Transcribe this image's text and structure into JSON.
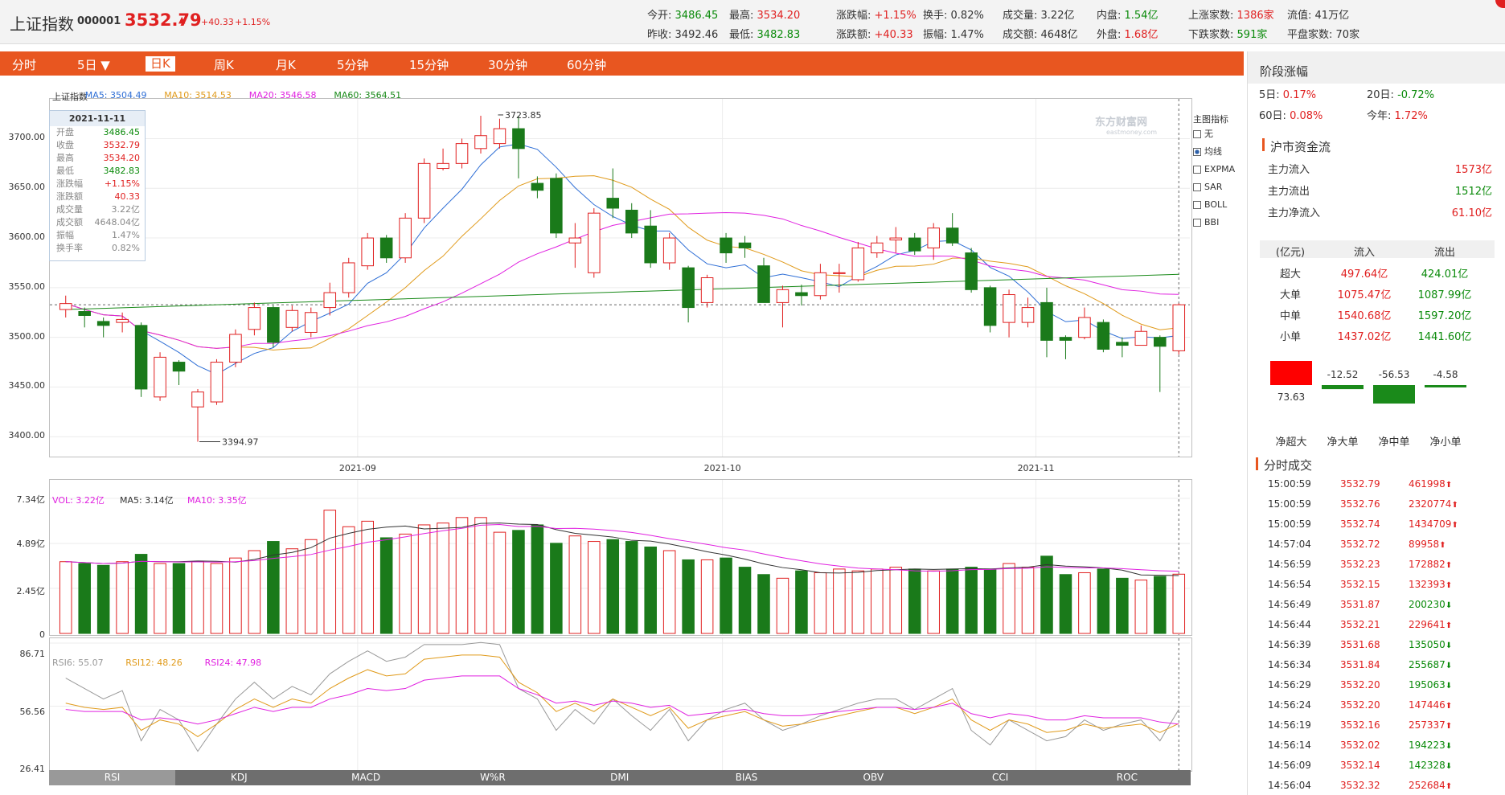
{
  "header": {
    "name": "上证指数",
    "code": "000001",
    "price": "3532.79",
    "arrow": "▲",
    "change": "+40.33",
    "change_pct": "+1.15%",
    "stats": [
      {
        "label": "今开:",
        "value": "3486.45",
        "color": "grn"
      },
      {
        "label": "最高:",
        "value": "3534.20",
        "color": "red"
      },
      {
        "label": "涨跌幅:",
        "value": "+1.15%",
        "color": "red"
      },
      {
        "label": "换手:",
        "value": "0.82%",
        "color": "blk"
      },
      {
        "label": "成交量:",
        "value": "3.22亿",
        "color": "blk"
      },
      {
        "label": "内盘:",
        "value": "1.54亿",
        "color": "grn"
      },
      {
        "label": "上涨家数:",
        "value": "1386家",
        "color": "red"
      },
      {
        "label": "流值:",
        "value": "41万亿",
        "color": "blk"
      },
      {
        "label": "昨收:",
        "value": "3492.46",
        "color": "blk"
      },
      {
        "label": "最低:",
        "value": "3482.83",
        "color": "grn"
      },
      {
        "label": "涨跌额:",
        "value": "+40.33",
        "color": "red"
      },
      {
        "label": "振幅:",
        "value": "1.47%",
        "color": "blk"
      },
      {
        "label": "成交额:",
        "value": "4648亿",
        "color": "blk"
      },
      {
        "label": "外盘:",
        "value": "1.68亿",
        "color": "red"
      },
      {
        "label": "下跌家数:",
        "value": "591家",
        "color": "grn"
      },
      {
        "label": "平盘家数:",
        "value": "70家",
        "color": "blk"
      }
    ]
  },
  "tabs": [
    "分时",
    "5日 ▼",
    "日K",
    "周K",
    "月K",
    "5分钟",
    "15分钟",
    "30分钟",
    "60分钟"
  ],
  "active_tab": "日K",
  "kline": {
    "legend": [
      {
        "label": "上证指数",
        "color": "#333333"
      },
      {
        "label": "MA5: 3504.49",
        "color": "#2f6fd6"
      },
      {
        "label": "MA10: 3514.53",
        "color": "#e09a1a"
      },
      {
        "label": "MA20: 3546.58",
        "color": "#e020e0"
      },
      {
        "label": "MA60: 3564.51",
        "color": "#1a8a1a"
      }
    ],
    "y_ticks": [
      "3700.00",
      "3650.00",
      "3600.00",
      "3550.00",
      "3500.00",
      "3450.00",
      "3400.00"
    ],
    "x_labels": [
      "2021-09",
      "2021-10",
      "2021-11"
    ],
    "annotations": {
      "high": "3723.85",
      "low": "3394.97"
    },
    "watermark": "东方财富网",
    "watermark_sub": "eastmoney.com",
    "tooltip": {
      "date": "2021-11-11",
      "rows": [
        {
          "k": "开盘",
          "v": "3486.45",
          "c": "grn"
        },
        {
          "k": "收盘",
          "v": "3532.79",
          "c": "red"
        },
        {
          "k": "最高",
          "v": "3534.20",
          "c": "red"
        },
        {
          "k": "最低",
          "v": "3482.83",
          "c": "grn"
        },
        {
          "k": "涨跌幅",
          "v": "+1.15%",
          "c": "red"
        },
        {
          "k": "涨跌额",
          "v": "40.33",
          "c": "red"
        },
        {
          "k": "成交量",
          "v": "3.22亿",
          "c": "blk"
        },
        {
          "k": "成交额",
          "v": "4648.04亿",
          "c": "blk"
        },
        {
          "k": "振幅",
          "v": "1.47%",
          "c": "blk"
        },
        {
          "k": "换手率",
          "v": "0.82%",
          "c": "blk"
        }
      ]
    },
    "indicator_title": "主图指标",
    "indicators": [
      {
        "label": "无",
        "checked": false
      },
      {
        "label": "均线",
        "checked": true
      },
      {
        "label": "EXPMA",
        "checked": false
      },
      {
        "label": "SAR",
        "checked": false
      },
      {
        "label": "BOLL",
        "checked": false
      },
      {
        "label": "BBI",
        "checked": false
      }
    ]
  },
  "volume": {
    "legend": [
      {
        "label": "VOL: 3.22亿",
        "color": "#e020e0"
      },
      {
        "label": "MA5: 3.14亿",
        "color": "#333333"
      },
      {
        "label": "MA10: 3.35亿",
        "color": "#e020e0"
      }
    ],
    "y_ticks": [
      "7.34亿",
      "4.89亿",
      "2.45亿",
      "0"
    ]
  },
  "rsi": {
    "legend": [
      {
        "label": "RSI6: 55.07",
        "color": "#999999"
      },
      {
        "label": "RSI12: 48.26",
        "color": "#e09a1a"
      },
      {
        "label": "RSI24: 47.98",
        "color": "#e020e0"
      }
    ],
    "y_ticks": [
      "86.71",
      "56.56",
      "26.41"
    ],
    "tabs": [
      "RSI",
      "KDJ",
      "MACD",
      "W%R",
      "DMI",
      "BIAS",
      "OBV",
      "CCI",
      "ROC"
    ]
  },
  "chart_data": [
    {
      "type": "candlestick",
      "title": "上证指数",
      "x_labels": [
        "2021-09",
        "2021-10",
        "2021-11"
      ],
      "ylim": [
        3380,
        3740
      ],
      "candles": [
        [
          3528,
          3534,
          3542,
          3520
        ],
        [
          3526,
          3522,
          3530,
          3510
        ],
        [
          3516,
          3512,
          3520,
          3500
        ],
        [
          3515,
          3518,
          3525,
          3505
        ],
        [
          3512,
          3448,
          3515,
          3440
        ],
        [
          3440,
          3480,
          3485,
          3436
        ],
        [
          3475,
          3466,
          3477,
          3452
        ],
        [
          3430,
          3445,
          3448,
          3395
        ],
        [
          3435,
          3475,
          3478,
          3432
        ],
        [
          3475,
          3503,
          3508,
          3470
        ],
        [
          3508,
          3530,
          3535,
          3502
        ],
        [
          3530,
          3495,
          3532,
          3490
        ],
        [
          3510,
          3527,
          3532,
          3506
        ],
        [
          3505,
          3525,
          3530,
          3500
        ],
        [
          3530,
          3545,
          3555,
          3522
        ],
        [
          3545,
          3575,
          3580,
          3540
        ],
        [
          3572,
          3600,
          3605,
          3568
        ],
        [
          3600,
          3580,
          3603,
          3575
        ],
        [
          3580,
          3620,
          3625,
          3575
        ],
        [
          3620,
          3675,
          3680,
          3615
        ],
        [
          3670,
          3675,
          3690,
          3668
        ],
        [
          3675,
          3695,
          3700,
          3670
        ],
        [
          3690,
          3703,
          3723,
          3685
        ],
        [
          3695,
          3710,
          3720,
          3690
        ],
        [
          3710,
          3690,
          3723,
          3660
        ],
        [
          3655,
          3648,
          3662,
          3640
        ],
        [
          3660,
          3605,
          3665,
          3600
        ],
        [
          3595,
          3600,
          3615,
          3570
        ],
        [
          3565,
          3625,
          3630,
          3560
        ],
        [
          3640,
          3630,
          3670,
          3620
        ],
        [
          3628,
          3605,
          3635,
          3600
        ],
        [
          3612,
          3575,
          3628,
          3570
        ],
        [
          3575,
          3600,
          3605,
          3568
        ],
        [
          3570,
          3530,
          3572,
          3515
        ],
        [
          3535,
          3560,
          3563,
          3530
        ],
        [
          3600,
          3585,
          3605,
          3575
        ],
        [
          3595,
          3590,
          3602,
          3580
        ],
        [
          3572,
          3535,
          3580,
          3540
        ],
        [
          3535,
          3548,
          3552,
          3510
        ],
        [
          3545,
          3542,
          3553,
          3532
        ],
        [
          3542,
          3565,
          3574,
          3538
        ],
        [
          3565,
          3565,
          3574,
          3545
        ],
        [
          3558,
          3590,
          3596,
          3556
        ],
        [
          3585,
          3595,
          3602,
          3580
        ],
        [
          3598,
          3600,
          3611,
          3585
        ],
        [
          3600,
          3587,
          3605,
          3583
        ],
        [
          3590,
          3610,
          3615,
          3578
        ],
        [
          3610,
          3595,
          3625,
          3592
        ],
        [
          3585,
          3548,
          3590,
          3545
        ],
        [
          3550,
          3512,
          3552,
          3505
        ],
        [
          3515,
          3543,
          3548,
          3500
        ],
        [
          3515,
          3530,
          3540,
          3510
        ],
        [
          3535,
          3497,
          3550,
          3480
        ],
        [
          3500,
          3497,
          3502,
          3478
        ],
        [
          3500,
          3520,
          3530,
          3498
        ],
        [
          3515,
          3488,
          3518,
          3485
        ],
        [
          3495,
          3492,
          3500,
          3480
        ],
        [
          3492,
          3506,
          3512,
          3498
        ],
        [
          3500,
          3491,
          3502,
          3445
        ],
        [
          3486.45,
          3532.79,
          3534.2,
          3482.83
        ]
      ]
    },
    {
      "type": "bar",
      "title": "VOL",
      "ylim": [
        0,
        7.34
      ],
      "values": [
        3.9,
        3.8,
        3.7,
        3.9,
        4.3,
        3.8,
        3.8,
        3.9,
        3.8,
        4.1,
        4.5,
        5.0,
        4.6,
        5.1,
        6.7,
        5.8,
        6.1,
        5.2,
        5.4,
        5.9,
        6.0,
        6.3,
        6.3,
        5.5,
        5.6,
        5.9,
        4.9,
        5.3,
        5.0,
        5.1,
        5.0,
        4.7,
        4.5,
        4.0,
        4.0,
        4.1,
        3.6,
        3.2,
        3.0,
        3.4,
        3.3,
        3.5,
        3.4,
        3.5,
        3.6,
        3.5,
        3.4,
        3.5,
        3.6,
        3.5,
        3.8,
        3.6,
        4.2,
        3.2,
        3.3,
        3.5,
        3.0,
        2.9,
        3.1,
        3.22
      ],
      "ma5": 3.14,
      "ma10": 3.35
    },
    {
      "type": "line",
      "title": "RSI",
      "ylim": [
        26.41,
        86.71
      ],
      "series": [
        {
          "name": "RSI6",
          "values": [
            70,
            65,
            60,
            64,
            40,
            55,
            50,
            35,
            48,
            60,
            68,
            60,
            66,
            62,
            72,
            78,
            83,
            78,
            80,
            86,
            86,
            86,
            87,
            86,
            65,
            60,
            45,
            55,
            48,
            60,
            52,
            45,
            55,
            40,
            50,
            55,
            58,
            50,
            45,
            48,
            52,
            55,
            58,
            60,
            60,
            55,
            60,
            65,
            45,
            38,
            50,
            45,
            40,
            42,
            50,
            45,
            48,
            50,
            40,
            55
          ]
        },
        {
          "name": "RSI12",
          "values": [
            58,
            56,
            55,
            56,
            45,
            50,
            48,
            42,
            48,
            55,
            60,
            56,
            60,
            58,
            65,
            70,
            74,
            71,
            72,
            79,
            80,
            81,
            81,
            80,
            68,
            63,
            54,
            58,
            54,
            60,
            56,
            52,
            56,
            46,
            50,
            52,
            54,
            50,
            47,
            48,
            50,
            52,
            54,
            56,
            56,
            53,
            56,
            60,
            50,
            45,
            50,
            48,
            44,
            45,
            48,
            46,
            47,
            48,
            44,
            48.26
          ]
        },
        {
          "name": "RSI24",
          "values": [
            55,
            54,
            54,
            54,
            50,
            51,
            50,
            48,
            50,
            53,
            56,
            54,
            56,
            56,
            60,
            62,
            65,
            64,
            65,
            69,
            70,
            71,
            71,
            71,
            65,
            62,
            58,
            59,
            57,
            59,
            58,
            56,
            57,
            52,
            53,
            54,
            55,
            53,
            52,
            52,
            53,
            54,
            55,
            56,
            56,
            55,
            56,
            58,
            53,
            51,
            53,
            52,
            50,
            50,
            52,
            51,
            51,
            51,
            49,
            47.98
          ]
        }
      ]
    }
  ],
  "sidebar": {
    "stage_title": "阶段涨幅",
    "stage": [
      {
        "k": "5日:",
        "v": "0.17%",
        "c": "red"
      },
      {
        "k": "20日:",
        "v": "-0.72%",
        "c": "grn"
      },
      {
        "k": "60日:",
        "v": "0.08%",
        "c": "red"
      },
      {
        "k": "今年:",
        "v": "1.72%",
        "c": "red"
      }
    ],
    "flow_title": "沪市资金流",
    "flows": [
      {
        "k": "主力流入",
        "v": "1573亿",
        "c": "red"
      },
      {
        "k": "主力流出",
        "v": "1512亿",
        "c": "grn"
      },
      {
        "k": "主力净流入",
        "v": "61.10亿",
        "c": "red"
      }
    ],
    "table_header": [
      "(亿元)",
      "流入",
      "流出"
    ],
    "table": [
      {
        "k": "超大",
        "in": "497.64亿",
        "out": "424.01亿"
      },
      {
        "k": "大单",
        "in": "1075.47亿",
        "out": "1087.99亿"
      },
      {
        "k": "中单",
        "in": "1540.68亿",
        "out": "1597.20亿"
      },
      {
        "k": "小单",
        "in": "1437.02亿",
        "out": "1441.60亿"
      }
    ],
    "net": [
      {
        "label": "净超大",
        "value": "73.63",
        "num": 73.63
      },
      {
        "label": "净大单",
        "value": "-12.52",
        "num": -12.52
      },
      {
        "label": "净中单",
        "value": "-56.53",
        "num": -56.53
      },
      {
        "label": "净小单",
        "value": "-4.58",
        "num": -4.58
      }
    ],
    "ticks_title": "分时成交",
    "ticks": [
      {
        "t": "15:00:59",
        "p": "3532.79",
        "v": "461998",
        "d": "up"
      },
      {
        "t": "15:00:59",
        "p": "3532.76",
        "v": "2320774",
        "d": "up"
      },
      {
        "t": "15:00:59",
        "p": "3532.74",
        "v": "1434709",
        "d": "up"
      },
      {
        "t": "14:57:04",
        "p": "3532.72",
        "v": "89958",
        "d": "up"
      },
      {
        "t": "14:56:59",
        "p": "3532.23",
        "v": "172882",
        "d": "up"
      },
      {
        "t": "14:56:54",
        "p": "3532.15",
        "v": "132393",
        "d": "up"
      },
      {
        "t": "14:56:49",
        "p": "3531.87",
        "v": "200230",
        "d": "down"
      },
      {
        "t": "14:56:44",
        "p": "3532.21",
        "v": "229641",
        "d": "up"
      },
      {
        "t": "14:56:39",
        "p": "3531.68",
        "v": "135050",
        "d": "down"
      },
      {
        "t": "14:56:34",
        "p": "3531.84",
        "v": "255687",
        "d": "down"
      },
      {
        "t": "14:56:29",
        "p": "3532.20",
        "v": "195063",
        "d": "down"
      },
      {
        "t": "14:56:24",
        "p": "3532.20",
        "v": "147446",
        "d": "up"
      },
      {
        "t": "14:56:19",
        "p": "3532.16",
        "v": "257337",
        "d": "up"
      },
      {
        "t": "14:56:14",
        "p": "3532.02",
        "v": "194223",
        "d": "down"
      },
      {
        "t": "14:56:09",
        "p": "3532.14",
        "v": "142328",
        "d": "down"
      },
      {
        "t": "14:56:04",
        "p": "3532.32",
        "v": "252684",
        "d": "up"
      }
    ]
  }
}
